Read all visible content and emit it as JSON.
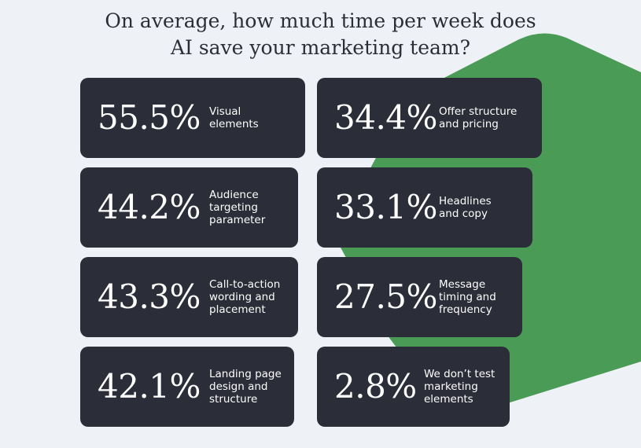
{
  "title_lines": [
    "On average, how much time per week does",
    "AI save your marketing team?"
  ],
  "colors": {
    "background": "#eef2f6",
    "accent_green": "#4a9b55",
    "card": "#2b2d38",
    "text_dark": "#2b2e37"
  },
  "chart_data": {
    "type": "table",
    "title": "On average, how much time per week does AI save your marketing team?",
    "categories": [
      "Visual elements",
      "Offer structure and pricing",
      "Audience targeting parameter",
      "Headlines and copy",
      "Call-to-action wording and placement",
      "Message timing and frequency",
      "Landing page design and structure",
      "We don’t test marketing elements"
    ],
    "values": [
      55.5,
      34.4,
      44.2,
      33.1,
      43.3,
      27.5,
      42.1,
      2.8
    ],
    "items": [
      {
        "value": "55.5%",
        "label": "Visual\nelements"
      },
      {
        "value": "34.4%",
        "label": "Offer structure\nand pricing"
      },
      {
        "value": "44.2%",
        "label": "Audience\ntargeting\nparameter"
      },
      {
        "value": "33.1%",
        "label": "Headlines\nand copy"
      },
      {
        "value": "43.3%",
        "label": "Call-to-action\nwording and\nplacement"
      },
      {
        "value": "27.5%",
        "label": "Message\ntiming and\nfrequency"
      },
      {
        "value": "42.1%",
        "label": "Landing page\ndesign and\nstructure"
      },
      {
        "value": "2.8%",
        "label": "We don’t test\nmarketing\nelements"
      }
    ]
  }
}
